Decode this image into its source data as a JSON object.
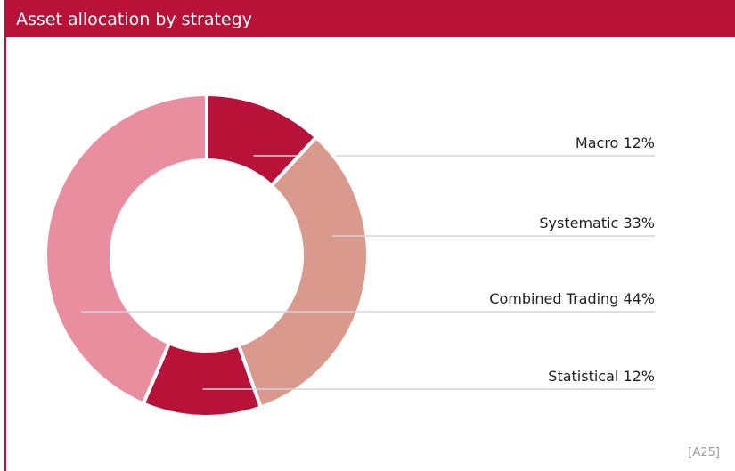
{
  "chart_data": {
    "type": "donut",
    "title": "Asset allocation by strategy",
    "categories": [
      "Macro",
      "Systematic",
      "Statistical",
      "Combined Trading"
    ],
    "values": [
      12,
      33,
      12,
      44
    ],
    "value_labels": [
      "12%",
      "33%",
      "12%",
      "44%"
    ],
    "colors": [
      "#b81238",
      "#d9998c",
      "#b81238",
      "#e88e9f"
    ],
    "footnote": "[A25]"
  }
}
